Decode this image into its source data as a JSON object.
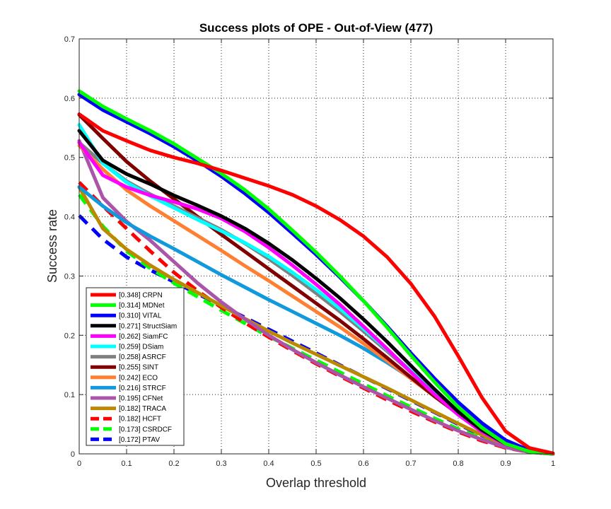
{
  "chart_data": {
    "type": "line",
    "title": "Success plots of OPE - Out-of-View (477)",
    "xlabel": "Overlap threshold",
    "ylabel": "Success rate",
    "xlim": [
      0,
      1
    ],
    "ylim": [
      0,
      0.7
    ],
    "xticks": [
      "0",
      "0.1",
      "0.2",
      "0.3",
      "0.4",
      "0.5",
      "0.6",
      "0.7",
      "0.8",
      "0.9",
      "1"
    ],
    "yticks": [
      "0",
      "0.1",
      "0.2",
      "0.3",
      "0.4",
      "0.5",
      "0.6",
      "0.7"
    ],
    "grid": true,
    "legend_position": "bottom-left",
    "x": [
      0,
      0.05,
      0.1,
      0.15,
      0.2,
      0.25,
      0.3,
      0.35,
      0.4,
      0.45,
      0.5,
      0.55,
      0.6,
      0.65,
      0.7,
      0.75,
      0.8,
      0.85,
      0.9,
      0.95,
      1.0
    ],
    "series": [
      {
        "name": "[0.348] CRPN",
        "color": "#ff0000",
        "dashed": false,
        "values": [
          0.573,
          0.545,
          0.528,
          0.512,
          0.5,
          0.49,
          0.478,
          0.465,
          0.452,
          0.437,
          0.418,
          0.395,
          0.367,
          0.332,
          0.287,
          0.232,
          0.165,
          0.095,
          0.038,
          0.01,
          0.001
        ]
      },
      {
        "name": "[0.314] MDNet",
        "color": "#00ff00",
        "dashed": false,
        "values": [
          0.612,
          0.586,
          0.565,
          0.545,
          0.523,
          0.498,
          0.473,
          0.445,
          0.413,
          0.377,
          0.34,
          0.3,
          0.258,
          0.213,
          0.166,
          0.121,
          0.079,
          0.044,
          0.017,
          0.004,
          0.0
        ]
      },
      {
        "name": "[0.310] VITAL",
        "color": "#0000ff",
        "dashed": false,
        "values": [
          0.606,
          0.58,
          0.56,
          0.54,
          0.518,
          0.494,
          0.468,
          0.439,
          0.407,
          0.372,
          0.336,
          0.298,
          0.258,
          0.215,
          0.17,
          0.127,
          0.087,
          0.052,
          0.023,
          0.006,
          0.0
        ]
      },
      {
        "name": "[0.271] StructSiam",
        "color": "#000000",
        "dashed": false,
        "values": [
          0.545,
          0.495,
          0.472,
          0.455,
          0.436,
          0.419,
          0.401,
          0.38,
          0.355,
          0.327,
          0.296,
          0.263,
          0.227,
          0.189,
          0.149,
          0.109,
          0.071,
          0.04,
          0.017,
          0.004,
          0.0
        ]
      },
      {
        "name": "[0.262] SiamFC",
        "color": "#ff00ff",
        "dashed": false,
        "values": [
          0.525,
          0.47,
          0.45,
          0.436,
          0.425,
          0.413,
          0.397,
          0.375,
          0.348,
          0.318,
          0.286,
          0.252,
          0.215,
          0.177,
          0.138,
          0.1,
          0.066,
          0.037,
          0.016,
          0.004,
          0.0
        ]
      },
      {
        "name": "[0.259] DSiam",
        "color": "#00ffff",
        "dashed": false,
        "values": [
          0.555,
          0.49,
          0.458,
          0.435,
          0.415,
          0.395,
          0.376,
          0.356,
          0.333,
          0.306,
          0.277,
          0.245,
          0.211,
          0.176,
          0.14,
          0.104,
          0.071,
          0.042,
          0.019,
          0.005,
          0.0
        ]
      },
      {
        "name": "[0.258] ASRCF",
        "color": "#808080",
        "dashed": false,
        "values": [
          0.525,
          0.49,
          0.46,
          0.438,
          0.418,
          0.398,
          0.378,
          0.355,
          0.329,
          0.301,
          0.271,
          0.24,
          0.207,
          0.173,
          0.138,
          0.103,
          0.07,
          0.041,
          0.018,
          0.005,
          0.0
        ]
      },
      {
        "name": "[0.255] SINT",
        "color": "#800000",
        "dashed": false,
        "values": [
          0.572,
          0.532,
          0.493,
          0.46,
          0.43,
          0.4,
          0.37,
          0.341,
          0.312,
          0.283,
          0.254,
          0.225,
          0.194,
          0.162,
          0.129,
          0.097,
          0.067,
          0.04,
          0.018,
          0.005,
          0.0
        ]
      },
      {
        "name": "[0.242] ECO",
        "color": "#ff8033",
        "dashed": false,
        "values": [
          0.52,
          0.48,
          0.445,
          0.418,
          0.393,
          0.368,
          0.343,
          0.317,
          0.292,
          0.266,
          0.24,
          0.214,
          0.186,
          0.157,
          0.127,
          0.097,
          0.068,
          0.041,
          0.019,
          0.005,
          0.0
        ]
      },
      {
        "name": "[0.216] STRCF",
        "color": "#1199dd",
        "dashed": false,
        "values": [
          0.45,
          0.418,
          0.39,
          0.367,
          0.346,
          0.324,
          0.302,
          0.281,
          0.26,
          0.24,
          0.22,
          0.2,
          0.178,
          0.154,
          0.128,
          0.1,
          0.072,
          0.045,
          0.022,
          0.006,
          0.0
        ]
      },
      {
        "name": "[0.195] CFNet",
        "color": "#aa55aa",
        "dashed": false,
        "values": [
          0.528,
          0.432,
          0.392,
          0.36,
          0.324,
          0.288,
          0.256,
          0.227,
          0.2,
          0.176,
          0.154,
          0.133,
          0.113,
          0.094,
          0.075,
          0.056,
          0.039,
          0.024,
          0.011,
          0.003,
          0.0
        ]
      },
      {
        "name": "[0.182] TRACA",
        "color": "#bb8800",
        "dashed": false,
        "values": [
          0.45,
          0.38,
          0.345,
          0.318,
          0.294,
          0.272,
          0.25,
          0.228,
          0.207,
          0.187,
          0.168,
          0.149,
          0.13,
          0.111,
          0.091,
          0.071,
          0.051,
          0.032,
          0.015,
          0.004,
          0.0
        ]
      },
      {
        "name": "[0.182] HCFT",
        "color": "#ff0000",
        "dashed": true,
        "values": [
          0.458,
          0.418,
          0.38,
          0.342,
          0.306,
          0.275,
          0.247,
          0.221,
          0.197,
          0.174,
          0.152,
          0.131,
          0.111,
          0.091,
          0.072,
          0.054,
          0.037,
          0.022,
          0.01,
          0.003,
          0.0
        ]
      },
      {
        "name": "[0.173] CSRDCF",
        "color": "#00ff00",
        "dashed": true,
        "values": [
          0.437,
          0.384,
          0.342,
          0.313,
          0.288,
          0.265,
          0.242,
          0.22,
          0.198,
          0.178,
          0.158,
          0.138,
          0.118,
          0.098,
          0.079,
          0.06,
          0.042,
          0.026,
          0.012,
          0.003,
          0.0
        ]
      },
      {
        "name": "[0.172] PTAV",
        "color": "#0000ff",
        "dashed": true,
        "values": [
          0.402,
          0.362,
          0.332,
          0.31,
          0.29,
          0.27,
          0.25,
          0.23,
          0.21,
          0.19,
          0.17,
          0.15,
          0.13,
          0.11,
          0.09,
          0.07,
          0.05,
          0.031,
          0.015,
          0.004,
          0.0
        ]
      }
    ]
  }
}
